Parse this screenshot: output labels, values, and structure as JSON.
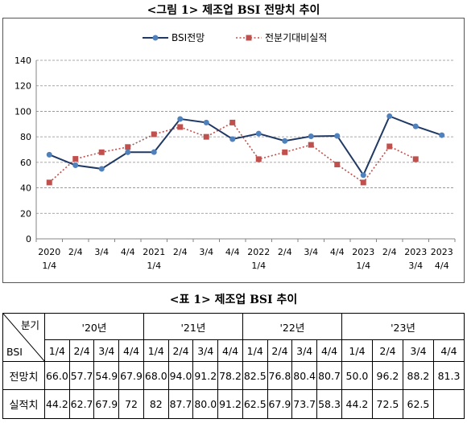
{
  "figure_title": "<그림 1> 제조업 BSI 전망치 추이",
  "table_title": "<표 1> 제조업 BSI 추이",
  "colors": {
    "forecast": "#1f3864",
    "forecast_marker": "#4f81bd",
    "actual": "#c0504d",
    "grid": "#8c8c8c"
  },
  "chart_data": {
    "type": "line",
    "x": [
      [
        "2020",
        "1/4"
      ],
      [
        "2/4"
      ],
      [
        "3/4"
      ],
      [
        "4/4"
      ],
      [
        "2021",
        "1/4"
      ],
      [
        "2/4"
      ],
      [
        "3/4"
      ],
      [
        "4/4"
      ],
      [
        "2022",
        "1/4"
      ],
      [
        "2/4"
      ],
      [
        "3/4"
      ],
      [
        "4/4"
      ],
      [
        "2023",
        "1/4"
      ],
      [
        "2/4"
      ],
      [
        "2023",
        "3/4"
      ],
      [
        "2023",
        "4/4"
      ]
    ],
    "series": [
      {
        "name": "BSI전망",
        "style": "solid",
        "values": [
          66.0,
          57.7,
          54.9,
          67.9,
          68.0,
          94.0,
          91.2,
          78.2,
          82.5,
          76.8,
          80.4,
          80.7,
          50.0,
          96.2,
          88.2,
          81.3
        ]
      },
      {
        "name": "전분기대비실적",
        "style": "dotted",
        "values": [
          44.2,
          62.7,
          67.9,
          72,
          82,
          87.7,
          80.0,
          91.2,
          62.5,
          67.9,
          73.7,
          58.3,
          44.2,
          72.5,
          62.5,
          null
        ]
      }
    ],
    "yticks": [
      0,
      20,
      40,
      60,
      80,
      100,
      120,
      140
    ],
    "ylim": [
      0,
      140
    ],
    "grid": "horizontal dashed",
    "legend": "top-center"
  },
  "table": {
    "corner_top": "분기",
    "corner_bottom": "BSI",
    "years": [
      "'20년",
      "'21년",
      "'22년",
      "'23년"
    ],
    "quarters": [
      "1/4",
      "2/4",
      "3/4",
      "4/4"
    ],
    "rows": [
      {
        "label": "전망치",
        "values": [
          "66.0",
          "57.7",
          "54.9",
          "67.9",
          "68.0",
          "94.0",
          "91.2",
          "78.2",
          "82.5",
          "76.8",
          "80.4",
          "80.7",
          "50.0",
          "96.2",
          "88.2",
          "81.3"
        ]
      },
      {
        "label": "실적치",
        "values": [
          "44.2",
          "62.7",
          "67.9",
          "72",
          "82",
          "87.7",
          "80.0",
          "91.2",
          "62.5",
          "67.9",
          "73.7",
          "58.3",
          "44.2",
          "72.5",
          "62.5",
          ""
        ]
      }
    ]
  }
}
